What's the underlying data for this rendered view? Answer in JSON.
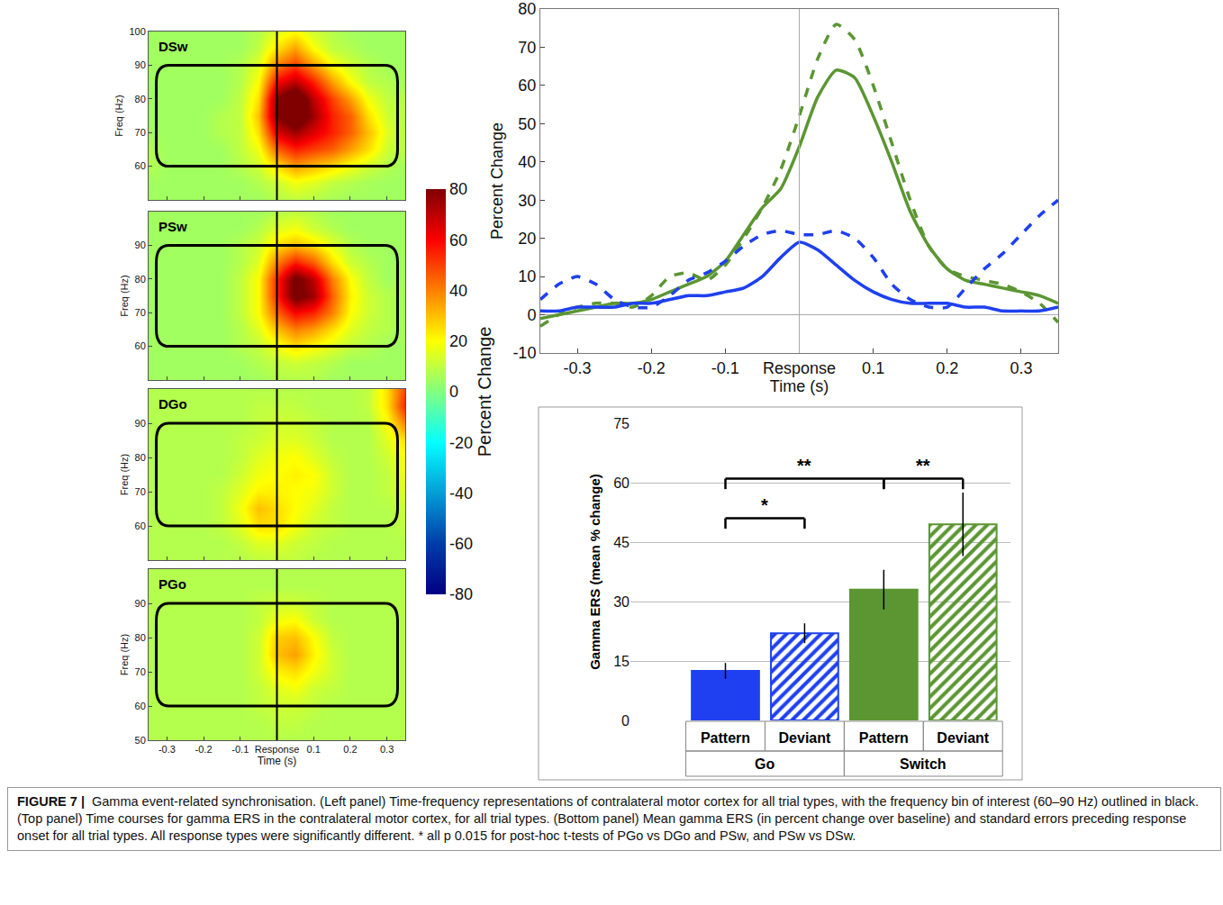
{
  "chart_data": [
    {
      "type": "heatmap",
      "xlabel": "Time (s)",
      "ylabel": "Freq (Hz)",
      "x": [
        -0.35,
        -0.3,
        -0.25,
        -0.2,
        -0.15,
        -0.1,
        -0.05,
        0,
        0.05,
        0.1,
        0.15,
        0.2,
        0.25,
        0.3,
        0.35
      ],
      "y": [
        50,
        55,
        60,
        65,
        70,
        75,
        80,
        85,
        90,
        95,
        100
      ],
      "xlim": [
        -0.35,
        0.35
      ],
      "ylim": [
        50,
        100
      ],
      "xticks": [
        -0.3,
        -0.2,
        -0.1,
        {
          "value": 0,
          "label": "Response"
        },
        0.1,
        0.2,
        0.3
      ],
      "band": [
        60,
        90
      ],
      "response_time": 0,
      "colorbar": {
        "title": "Percent Change",
        "range": [
          -80,
          80
        ],
        "ticks": [
          -80,
          -60,
          -40,
          -20,
          0,
          20,
          40,
          60,
          80
        ]
      },
      "panels": [
        {
          "label": "DSw",
          "yticks": [
            60,
            70,
            80,
            90,
            100
          ],
          "z": [
            [
              5,
              5,
              5,
              5,
              5,
              5,
              5,
              8,
              10,
              8,
              6,
              5,
              5,
              5,
              5
            ],
            [
              5,
              5,
              5,
              5,
              5,
              5,
              8,
              12,
              18,
              15,
              10,
              8,
              6,
              5,
              5
            ],
            [
              8,
              5,
              5,
              5,
              5,
              8,
              12,
              25,
              35,
              30,
              25,
              18,
              12,
              8,
              5
            ],
            [
              8,
              5,
              5,
              5,
              5,
              10,
              18,
              45,
              55,
              50,
              45,
              35,
              25,
              12,
              8
            ],
            [
              5,
              5,
              5,
              5,
              8,
              10,
              25,
              65,
              75,
              65,
              55,
              45,
              30,
              15,
              8
            ],
            [
              5,
              5,
              5,
              5,
              8,
              10,
              30,
              80,
              95,
              75,
              55,
              45,
              25,
              12,
              8
            ],
            [
              5,
              5,
              5,
              5,
              5,
              10,
              25,
              80,
              95,
              70,
              50,
              35,
              18,
              10,
              8
            ],
            [
              5,
              5,
              5,
              5,
              5,
              8,
              20,
              60,
              70,
              55,
              35,
              20,
              10,
              8,
              5
            ],
            [
              5,
              5,
              5,
              5,
              5,
              8,
              15,
              40,
              50,
              35,
              20,
              12,
              8,
              5,
              5
            ],
            [
              5,
              5,
              5,
              5,
              5,
              5,
              10,
              25,
              35,
              20,
              10,
              8,
              5,
              5,
              5
            ],
            [
              5,
              5,
              5,
              5,
              5,
              5,
              8,
              15,
              20,
              12,
              8,
              5,
              5,
              5,
              5
            ]
          ]
        },
        {
          "label": "PSw",
          "yticks": [
            60,
            70,
            80,
            90
          ],
          "z": [
            [
              5,
              5,
              5,
              5,
              5,
              5,
              5,
              8,
              8,
              8,
              5,
              5,
              5,
              5,
              5
            ],
            [
              5,
              5,
              5,
              5,
              5,
              5,
              8,
              10,
              12,
              10,
              8,
              5,
              5,
              5,
              5
            ],
            [
              5,
              5,
              5,
              5,
              5,
              8,
              10,
              18,
              25,
              20,
              15,
              10,
              8,
              5,
              5
            ],
            [
              5,
              5,
              5,
              5,
              5,
              8,
              15,
              30,
              40,
              35,
              25,
              15,
              10,
              8,
              5
            ],
            [
              5,
              5,
              5,
              5,
              5,
              10,
              20,
              45,
              60,
              55,
              40,
              20,
              12,
              8,
              5
            ],
            [
              5,
              5,
              5,
              5,
              5,
              10,
              20,
              55,
              85,
              75,
              45,
              22,
              12,
              8,
              5
            ],
            [
              5,
              5,
              5,
              5,
              5,
              10,
              20,
              55,
              85,
              70,
              40,
              20,
              10,
              5,
              5
            ],
            [
              5,
              5,
              5,
              5,
              5,
              8,
              15,
              40,
              55,
              45,
              25,
              12,
              8,
              5,
              5
            ],
            [
              5,
              5,
              5,
              5,
              5,
              8,
              12,
              25,
              30,
              25,
              15,
              8,
              5,
              5,
              5
            ],
            [
              5,
              5,
              5,
              5,
              5,
              5,
              8,
              15,
              18,
              12,
              8,
              5,
              5,
              5,
              5
            ],
            [
              5,
              5,
              5,
              5,
              5,
              5,
              5,
              8,
              10,
              8,
              5,
              5,
              5,
              5,
              5
            ]
          ]
        },
        {
          "label": "DGo",
          "yticks": [
            60,
            70,
            80,
            90
          ],
          "z": [
            [
              8,
              8,
              8,
              8,
              8,
              8,
              10,
              10,
              10,
              8,
              8,
              8,
              8,
              8,
              8
            ],
            [
              8,
              8,
              8,
              8,
              8,
              10,
              15,
              15,
              12,
              10,
              8,
              8,
              8,
              8,
              8
            ],
            [
              8,
              8,
              8,
              8,
              10,
              15,
              25,
              25,
              18,
              12,
              10,
              8,
              8,
              8,
              10
            ],
            [
              8,
              8,
              8,
              8,
              10,
              18,
              30,
              25,
              20,
              15,
              10,
              8,
              8,
              8,
              12
            ],
            [
              8,
              8,
              8,
              8,
              10,
              15,
              22,
              22,
              20,
              18,
              12,
              8,
              8,
              10,
              15
            ],
            [
              8,
              8,
              8,
              8,
              8,
              12,
              18,
              20,
              22,
              20,
              12,
              8,
              8,
              10,
              18
            ],
            [
              8,
              8,
              8,
              8,
              8,
              10,
              15,
              18,
              20,
              15,
              10,
              8,
              8,
              12,
              20
            ],
            [
              8,
              8,
              8,
              8,
              8,
              10,
              12,
              15,
              15,
              12,
              8,
              8,
              8,
              15,
              25
            ],
            [
              8,
              8,
              8,
              8,
              8,
              8,
              10,
              12,
              12,
              10,
              8,
              8,
              8,
              20,
              40
            ],
            [
              8,
              8,
              8,
              8,
              8,
              8,
              10,
              10,
              10,
              8,
              8,
              8,
              10,
              25,
              55
            ],
            [
              8,
              8,
              8,
              8,
              8,
              8,
              8,
              8,
              8,
              8,
              8,
              8,
              10,
              25,
              50
            ]
          ]
        },
        {
          "label": "PGo",
          "yticks": [
            50,
            60,
            70,
            80,
            90
          ],
          "z": [
            [
              8,
              8,
              8,
              8,
              8,
              8,
              8,
              8,
              8,
              8,
              8,
              8,
              8,
              8,
              8
            ],
            [
              8,
              8,
              8,
              8,
              8,
              8,
              8,
              10,
              10,
              8,
              8,
              8,
              8,
              8,
              8
            ],
            [
              8,
              8,
              8,
              8,
              8,
              8,
              10,
              12,
              12,
              10,
              8,
              8,
              8,
              8,
              8
            ],
            [
              8,
              8,
              8,
              8,
              8,
              8,
              10,
              15,
              18,
              12,
              10,
              8,
              8,
              8,
              8
            ],
            [
              8,
              8,
              8,
              8,
              8,
              8,
              12,
              22,
              25,
              18,
              12,
              8,
              8,
              8,
              8
            ],
            [
              8,
              8,
              8,
              8,
              8,
              8,
              12,
              30,
              35,
              22,
              12,
              8,
              8,
              8,
              8
            ],
            [
              8,
              8,
              8,
              8,
              8,
              8,
              12,
              28,
              30,
              20,
              10,
              8,
              8,
              8,
              8
            ],
            [
              8,
              8,
              8,
              8,
              8,
              8,
              10,
              18,
              20,
              12,
              8,
              8,
              8,
              8,
              8
            ],
            [
              8,
              8,
              8,
              8,
              8,
              8,
              10,
              12,
              12,
              10,
              8,
              8,
              8,
              8,
              8
            ],
            [
              8,
              8,
              8,
              8,
              8,
              8,
              8,
              8,
              8,
              8,
              8,
              8,
              8,
              8,
              8
            ],
            [
              8,
              8,
              8,
              8,
              8,
              8,
              8,
              8,
              8,
              8,
              8,
              8,
              8,
              8,
              8
            ]
          ]
        }
      ]
    },
    {
      "type": "line",
      "xlabel": "Time (s)",
      "ylabel": "Percent Change",
      "x": [
        -0.35,
        -0.325,
        -0.3,
        -0.275,
        -0.25,
        -0.225,
        -0.2,
        -0.175,
        -0.15,
        -0.125,
        -0.1,
        -0.075,
        -0.05,
        -0.025,
        0,
        0.025,
        0.05,
        0.075,
        0.1,
        0.125,
        0.15,
        0.175,
        0.2,
        0.225,
        0.25,
        0.275,
        0.3,
        0.325,
        0.35
      ],
      "xlim": [
        -0.35,
        0.35
      ],
      "ylim": [
        -10,
        80
      ],
      "xticks": [
        -0.3,
        -0.2,
        -0.1,
        {
          "value": 0,
          "label": "Response"
        },
        0.1,
        0.2,
        0.3
      ],
      "yticks": [
        -10,
        0,
        10,
        20,
        30,
        40,
        50,
        60,
        70,
        80
      ],
      "response_time": 0,
      "series": [
        {
          "name": "DSw",
          "color": "#5b9632",
          "line_style": "dashed",
          "values": [
            -3,
            0,
            2,
            3,
            3,
            2,
            5,
            10,
            11,
            9,
            13,
            20,
            28,
            38,
            52,
            67,
            76,
            72,
            60,
            45,
            30,
            18,
            12,
            10,
            9,
            8,
            6,
            3,
            -2
          ]
        },
        {
          "name": "PSw",
          "color": "#5b9632",
          "line_style": "solid",
          "values": [
            -1,
            0,
            1,
            2,
            3,
            3,
            4,
            6,
            8,
            10,
            14,
            21,
            28,
            33,
            44,
            57,
            64,
            62,
            52,
            40,
            27,
            18,
            12,
            9,
            8,
            7,
            6,
            5,
            3
          ]
        },
        {
          "name": "DGo",
          "color": "#1e40f0",
          "line_style": "dashed",
          "values": [
            4,
            8,
            10,
            8,
            4,
            2,
            2,
            5,
            9,
            11,
            14,
            18,
            21,
            22,
            21,
            21,
            22,
            20,
            15,
            8,
            4,
            2,
            2,
            7,
            12,
            16,
            21,
            26,
            30
          ]
        },
        {
          "name": "PGo",
          "color": "#1e40f0",
          "line_style": "solid",
          "values": [
            1,
            1,
            2,
            2,
            2,
            3,
            3,
            4,
            5,
            5,
            6,
            7,
            10,
            15,
            19,
            17,
            13,
            9,
            6,
            4,
            3,
            3,
            3,
            2,
            2,
            1,
            1,
            1,
            2
          ]
        }
      ]
    },
    {
      "type": "bar",
      "ylabel": "Gamma ERS (mean % change)",
      "categories": [
        "Go",
        "Switch"
      ],
      "ylim": [
        0,
        75
      ],
      "yticks": [
        0,
        15,
        30,
        45,
        60,
        75
      ],
      "grid": true,
      "series": [
        {
          "name": "Pattern",
          "marker": "solid",
          "colors": [
            "#1e40f0",
            "#5b9632"
          ],
          "values": [
            12.5,
            33
          ],
          "errors": [
            2,
            5
          ]
        },
        {
          "name": "Deviant",
          "marker": "hatched",
          "colors": [
            "#1e40f0",
            "#5b9632"
          ],
          "values": [
            22,
            49.5
          ],
          "errors": [
            2.5,
            8
          ]
        }
      ],
      "brackets": [
        {
          "from": 0,
          "to": 2,
          "y": 61,
          "label": "**"
        },
        {
          "from": 2,
          "to": 3,
          "y": 61,
          "label": "**"
        },
        {
          "from": 0,
          "to": 1,
          "y": 51,
          "label": "*"
        }
      ]
    }
  ],
  "caption": {
    "label": "FIGURE 7 |",
    "text": "Gamma event-related synchronisation. (Left panel) Time-frequency representations of contralateral motor cortex for all trial types, with the frequency bin of interest (60–90 Hz) outlined in black. (Top panel) Time courses for gamma ERS in the contralateral motor cortex, for all trial types. (Bottom panel) Mean gamma ERS (in percent change over baseline) and standard errors preceding response onset for all trial types. All response types were significantly different. * all p  0.015 for post-hoc t-tests of PGo vs DGo and PSw, and PSw vs DSw."
  }
}
